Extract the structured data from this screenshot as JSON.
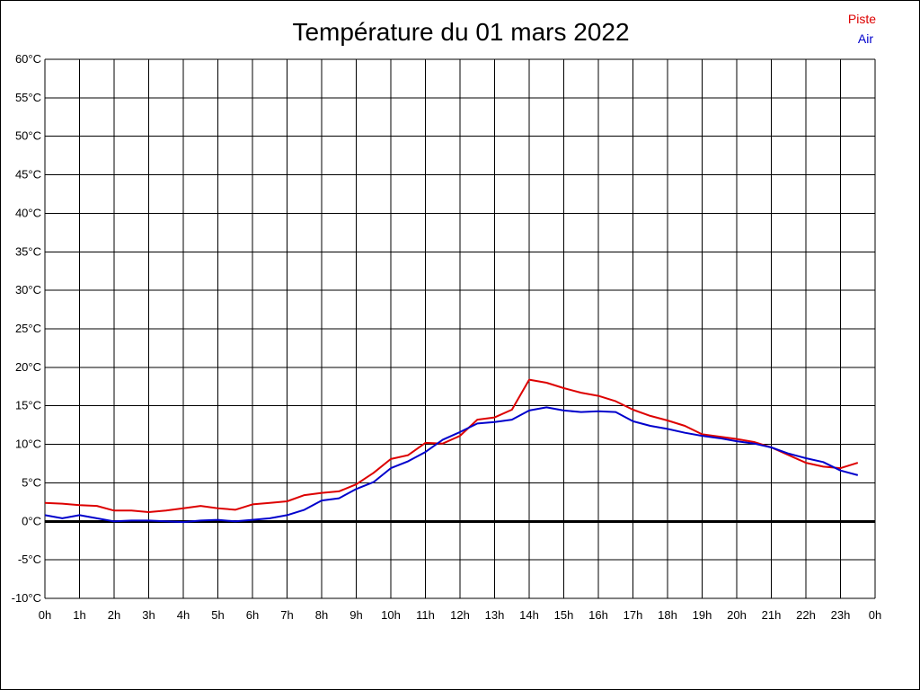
{
  "chart_data": {
    "type": "line",
    "title": "Température du 01 mars 2022",
    "ylim": [
      -10,
      60
    ],
    "yticks": [
      "60°C",
      "55°C",
      "50°C",
      "45°C",
      "40°C",
      "35°C",
      "30°C",
      "25°C",
      "20°C",
      "15°C",
      "10°C",
      "5°C",
      "0°C",
      "-5°C",
      "-10°C"
    ],
    "xticks": [
      "0h",
      "1h",
      "2h",
      "3h",
      "4h",
      "5h",
      "6h",
      "7h",
      "8h",
      "9h",
      "10h",
      "11h",
      "12h",
      "13h",
      "14h",
      "15h",
      "16h",
      "17h",
      "18h",
      "19h",
      "20h",
      "21h",
      "22h",
      "23h",
      "0h"
    ],
    "grid": true,
    "legend_position": "top-right",
    "x_hours": [
      0,
      0.5,
      1,
      1.5,
      2,
      2.5,
      3,
      3.5,
      4,
      4.5,
      5,
      5.5,
      6,
      6.5,
      7,
      7.5,
      8,
      8.5,
      9,
      9.5,
      10,
      10.5,
      11,
      11.5,
      12,
      12.5,
      13,
      13.5,
      14,
      14.5,
      15,
      15.5,
      16,
      16.5,
      17,
      17.5,
      18,
      18.5,
      19,
      19.5,
      20,
      20.5,
      21,
      21.5,
      22,
      22.5,
      23,
      23.5
    ],
    "series": [
      {
        "name": "Piste",
        "color": "#dd0000",
        "values": [
          2.4,
          2.3,
          2.1,
          2.0,
          1.4,
          1.4,
          1.2,
          1.4,
          1.7,
          2.0,
          1.7,
          1.5,
          2.2,
          2.4,
          2.6,
          3.4,
          3.7,
          3.9,
          4.8,
          6.3,
          8.1,
          8.6,
          10.2,
          10.1,
          11.1,
          13.2,
          13.5,
          14.5,
          18.4,
          18.0,
          17.3,
          16.7,
          16.3,
          15.6,
          14.5,
          13.7,
          13.1,
          12.4,
          11.3,
          11.0,
          10.7,
          10.3,
          9.6,
          8.6,
          7.6,
          7.1,
          6.9,
          7.6
        ]
      },
      {
        "name": "Air",
        "color": "#0000cc",
        "values": [
          0.8,
          0.4,
          0.8,
          0.4,
          0.0,
          0.1,
          0.1,
          0.0,
          -0.1,
          0.1,
          0.2,
          0.0,
          0.2,
          0.4,
          0.8,
          1.5,
          2.7,
          3.0,
          4.2,
          5.1,
          6.9,
          7.8,
          9.0,
          10.6,
          11.6,
          12.7,
          12.9,
          13.2,
          14.4,
          14.8,
          14.4,
          14.2,
          14.3,
          14.2,
          13.0,
          12.4,
          12.0,
          11.5,
          11.1,
          10.8,
          10.4,
          10.1,
          9.6,
          8.8,
          8.2,
          7.7,
          6.6,
          6.0
        ]
      }
    ]
  }
}
